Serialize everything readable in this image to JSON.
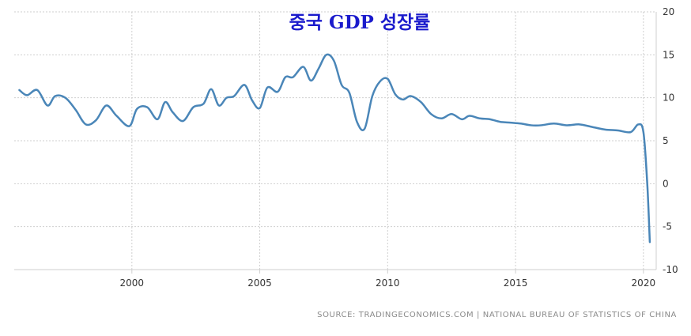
{
  "chart_data": {
    "type": "line",
    "title": "중국 GDP 성장률",
    "source": "SOURCE: TRADINGECONOMICS.COM | NATIONAL BUREAU OF STATISTICS OF CHINA",
    "xlim": [
      1995.4,
      2020.5
    ],
    "ylim": [
      -10,
      20
    ],
    "x_ticks": [
      2000,
      2005,
      2010,
      2015,
      2020
    ],
    "y_ticks": [
      20,
      15,
      10,
      5,
      0,
      -5,
      -10
    ],
    "grid": true,
    "y_axis_position": "right",
    "colors": {
      "line": "#4a86b8",
      "grid": "#cfcfcf"
    },
    "series": [
      {
        "x": [
          1995.6,
          1995.9,
          1996.3,
          1996.7,
          1997.0,
          1997.4,
          1997.8,
          1998.2,
          1998.6,
          1999.0,
          1999.4,
          1999.9,
          2000.2,
          2000.6,
          2001.0,
          2001.3,
          2001.6,
          2002.0,
          2002.4,
          2002.8,
          2003.1,
          2003.4,
          2003.7,
          2004.0,
          2004.4,
          2004.7,
          2005.0,
          2005.3,
          2005.7,
          2006.0,
          2006.3,
          2006.7,
          2007.0,
          2007.3,
          2007.6,
          2007.9,
          2008.2,
          2008.5,
          2008.8,
          2009.1,
          2009.4,
          2009.7,
          2010.0,
          2010.3,
          2010.6,
          2010.9,
          2011.3,
          2011.7,
          2012.1,
          2012.5,
          2012.9,
          2013.2,
          2013.6,
          2014.0,
          2014.4,
          2014.8,
          2015.2,
          2015.6,
          2016.0,
          2016.5,
          2017.0,
          2017.5,
          2018.0,
          2018.5,
          2019.0,
          2019.5,
          2019.8,
          2020.0,
          2020.15,
          2020.25
        ],
        "y": [
          10.9,
          10.3,
          10.9,
          9.1,
          10.2,
          10.0,
          8.6,
          6.9,
          7.4,
          9.1,
          7.9,
          6.7,
          8.7,
          8.9,
          7.5,
          9.5,
          8.3,
          7.3,
          8.9,
          9.3,
          11.0,
          9.1,
          10.0,
          10.2,
          11.5,
          9.7,
          8.8,
          11.2,
          10.7,
          12.4,
          12.4,
          13.6,
          12.0,
          13.4,
          15.0,
          14.3,
          11.5,
          10.6,
          7.2,
          6.4,
          10.2,
          11.9,
          12.2,
          10.4,
          9.8,
          10.2,
          9.5,
          8.1,
          7.6,
          8.1,
          7.5,
          7.9,
          7.6,
          7.5,
          7.2,
          7.1,
          7.0,
          6.8,
          6.8,
          7.0,
          6.8,
          6.9,
          6.6,
          6.3,
          6.2,
          6.0,
          6.9,
          6.0,
          0.0,
          -6.8
        ]
      }
    ]
  }
}
